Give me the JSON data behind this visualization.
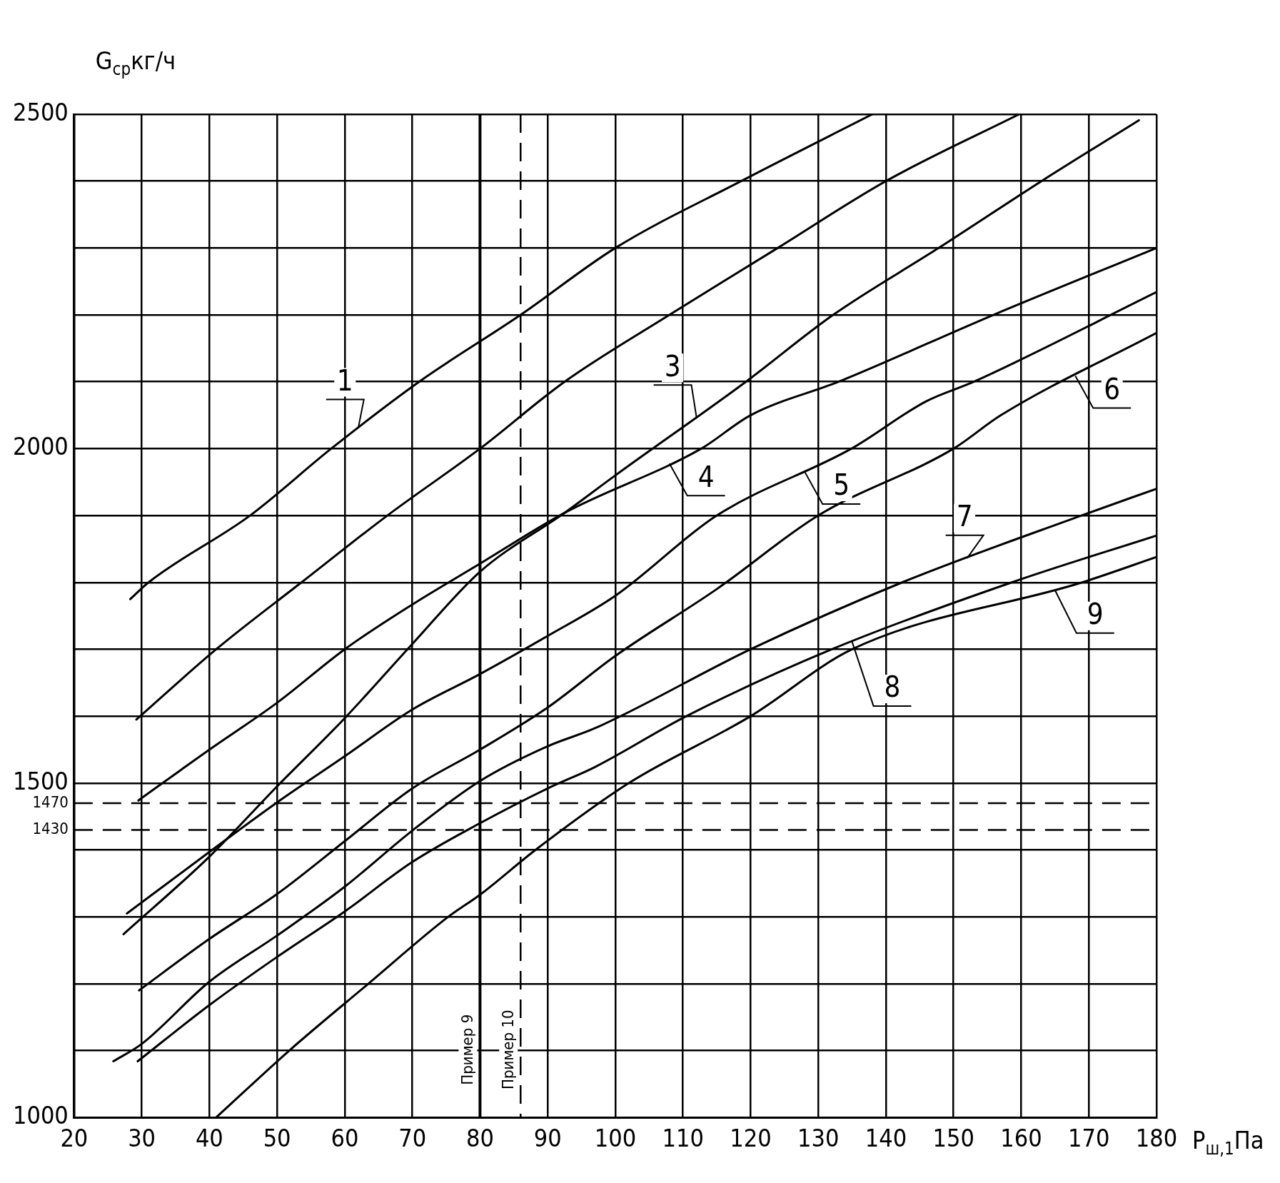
{
  "chart_data": {
    "type": "line",
    "xlabel": "P$_{ш,1}$Па",
    "ylabel": "G$_{ср}$кг/ч",
    "xlim": [
      20,
      180
    ],
    "xticks": [
      20,
      30,
      40,
      50,
      60,
      70,
      80,
      90,
      100,
      110,
      120,
      130,
      140,
      150,
      160,
      170,
      180
    ],
    "ylim": [
      1000,
      2500
    ],
    "yticks": [
      1000,
      {
        "value": 1100,
        "label": null
      },
      {
        "value": 1200,
        "label": null
      },
      {
        "value": 1300,
        "label": null
      },
      {
        "value": 1400,
        "label": null
      },
      1500,
      {
        "value": 1600,
        "label": null
      },
      {
        "value": 1700,
        "label": null
      },
      {
        "value": 1800,
        "label": null
      },
      {
        "value": 1900,
        "label": null
      },
      2000,
      {
        "value": 2100,
        "label": null
      },
      {
        "value": 2200,
        "label": null
      },
      {
        "value": 2300,
        "label": null
      },
      {
        "value": 2400,
        "label": null
      },
      2500
    ],
    "grid": true,
    "legend": false,
    "marker": "none",
    "line_style": "solid",
    "series": [
      {
        "name": "1",
        "color": "#000000",
        "x": [
          28.3,
          31,
          46,
          58,
          71,
          86,
          100,
          118.6,
          138
        ],
        "values": [
          1775,
          1800,
          1900,
          2000,
          2100,
          2200,
          2300,
          2400,
          2500
        ]
      },
      {
        "color": "#000000",
        "x": [
          29.2,
          41,
          53.6,
          66.3,
          80,
          92.5,
          108,
          124,
          140,
          159.7
        ],
        "values": [
          1595,
          1700,
          1800,
          1900,
          2000,
          2100,
          2200,
          2300,
          2400,
          2500
        ]
      },
      {
        "name": "3",
        "color": "#000000",
        "x": [
          27.3,
          40,
          50,
          60,
          70,
          80,
          92.5,
          100,
          119.3,
          132.2,
          147.8,
          163,
          177.4
        ],
        "values": [
          1274,
          1390,
          1495,
          1597,
          1708,
          1816,
          1904,
          1960,
          2100,
          2200,
          2300,
          2400,
          2491
        ]
      },
      {
        "name": "4",
        "color": "#000000",
        "x": [
          29.5,
          40,
          50,
          60,
          70,
          80,
          92.5,
          112.7,
          120,
          133,
          155.9,
          180
        ],
        "values": [
          1474,
          1550,
          1620,
          1700,
          1767,
          1828,
          1904,
          2000,
          2050,
          2100,
          2200,
          2300
        ]
      },
      {
        "name": "5",
        "color": "#000000",
        "x": [
          27.8,
          40,
          50,
          60,
          70,
          80,
          90,
          100,
          115,
          134.9,
          146,
          153,
          180
        ],
        "values": [
          1305,
          1397,
          1471,
          1540,
          1610,
          1663,
          1720,
          1780,
          1900,
          2000,
          2071,
          2100,
          2234
        ]
      },
      {
        "name": "6",
        "color": "#000000",
        "x": [
          29.6,
          40,
          50,
          60,
          70,
          80,
          90,
          100,
          115,
          130,
          150,
          157,
          180
        ],
        "values": [
          1190,
          1267,
          1334,
          1413,
          1492,
          1550,
          1613,
          1690,
          1790,
          1900,
          2000,
          2050,
          2173
        ]
      },
      {
        "name": "7",
        "color": "#000000",
        "x": [
          25.8,
          30,
          40,
          50,
          60,
          70,
          80,
          90,
          97,
          120,
          142.4,
          168.9,
          180
        ],
        "values": [
          1084,
          1110,
          1203,
          1272,
          1345,
          1429,
          1503,
          1555,
          1582,
          1700,
          1800,
          1900,
          1940
        ]
      },
      {
        "name": "8",
        "color": "#000000",
        "x": [
          29.4,
          40,
          50,
          60,
          70,
          80,
          90,
          97,
          110.5,
          132,
          158.6,
          180
        ],
        "values": [
          1084,
          1168,
          1240,
          1308,
          1382,
          1440,
          1492,
          1524,
          1600,
          1700,
          1800,
          1870
        ]
      },
      {
        "name": "9",
        "color": "#000000",
        "x": [
          41,
          51.8,
          63.5,
          75.3,
          80,
          88.2,
          102,
          120,
          135,
          169,
          180
        ],
        "values": [
          1000,
          1100,
          1200,
          1300,
          1333,
          1400,
          1500,
          1600,
          1700,
          1800,
          1838
        ]
      }
    ],
    "ref_lines": [
      {
        "axis": "y",
        "value": 1470,
        "label": "1470",
        "line_style": "dashed"
      },
      {
        "axis": "y",
        "value": 1430,
        "label": "1430",
        "line_style": "dashed"
      },
      {
        "axis": "x",
        "value": 80,
        "label": "Пример 9",
        "line_style": "solid"
      },
      {
        "axis": "x",
        "value": 86,
        "label": "Пример 10",
        "line_style": "dashed"
      }
    ]
  }
}
